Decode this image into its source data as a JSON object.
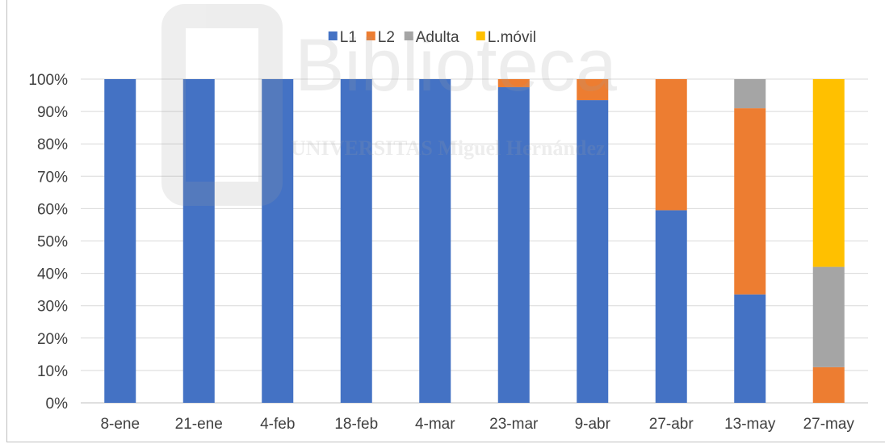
{
  "chart_data": {
    "type": "bar",
    "stacked": true,
    "percent": true,
    "categories": [
      "8-ene",
      "21-ene",
      "4-feb",
      "18-feb",
      "4-mar",
      "23-mar",
      "9-abr",
      "27-abr",
      "13-may",
      "27-may"
    ],
    "series": [
      {
        "name": "L1",
        "color": "#4472C4",
        "values": [
          100,
          100,
          100,
          100,
          100,
          97.5,
          93.5,
          59.5,
          33.5,
          0
        ]
      },
      {
        "name": "L2",
        "color": "#ED7D31",
        "values": [
          0,
          0,
          0,
          0,
          0,
          2.5,
          6.5,
          40.5,
          57.5,
          11
        ]
      },
      {
        "name": "Adulta",
        "color": "#A5A5A5",
        "values": [
          0,
          0,
          0,
          0,
          0,
          0,
          0,
          0,
          9,
          31
        ]
      },
      {
        "name": "L.móvil",
        "color": "#FFC000",
        "values": [
          0,
          0,
          0,
          0,
          0,
          0,
          0,
          0,
          0,
          58
        ]
      }
    ],
    "y_ticks": [
      "0%",
      "10%",
      "20%",
      "30%",
      "40%",
      "50%",
      "60%",
      "70%",
      "80%",
      "90%",
      "100%"
    ],
    "ylim": [
      0,
      100
    ],
    "grid": true,
    "legend_position": "top-center",
    "title": "",
    "xlabel": "",
    "ylabel": ""
  },
  "watermark": {
    "text": "Biblioteca",
    "subtext": "UNIVERSITAS Miguel Hernández"
  }
}
